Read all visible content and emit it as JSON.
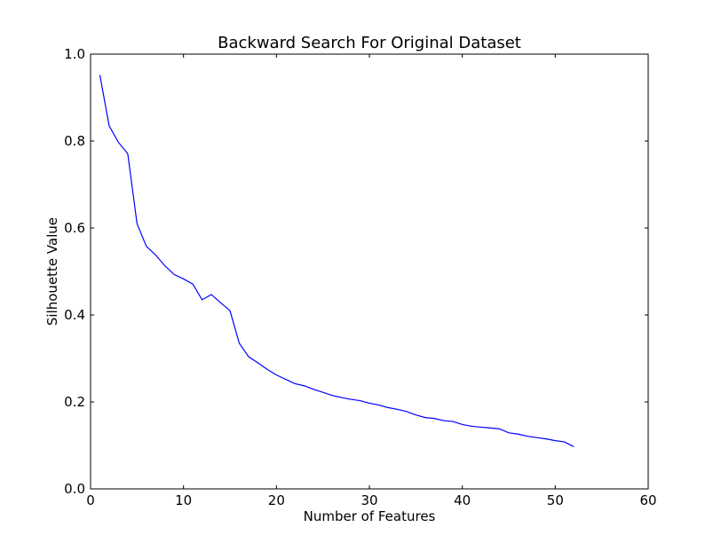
{
  "chart_data": {
    "type": "line",
    "title": "Backward Search For Original Dataset",
    "xlabel": "Number of Features",
    "ylabel": "Silhouette Value",
    "xlim": [
      0,
      60
    ],
    "ylim": [
      0.0,
      1.0
    ],
    "xticks": [
      0,
      10,
      20,
      30,
      40,
      50,
      60
    ],
    "xtick_labels": [
      "0",
      "10",
      "20",
      "30",
      "40",
      "50",
      "60"
    ],
    "yticks": [
      0.0,
      0.2,
      0.4,
      0.6,
      0.8,
      1.0
    ],
    "ytick_labels": [
      "0.0",
      "0.2",
      "0.4",
      "0.6",
      "0.8",
      "1.0"
    ],
    "grid": false,
    "legend": false,
    "series": [
      {
        "color": "#0000ff",
        "x": [
          1,
          2,
          3,
          4,
          5,
          6,
          7,
          8,
          9,
          10,
          11,
          12,
          13,
          14,
          15,
          16,
          17,
          18,
          19,
          20,
          21,
          22,
          23,
          24,
          25,
          26,
          27,
          28,
          29,
          30,
          31,
          32,
          33,
          34,
          35,
          36,
          37,
          38,
          39,
          40,
          41,
          42,
          43,
          44,
          45,
          46,
          47,
          48,
          49,
          50,
          51,
          52
        ],
        "y": [
          0.952,
          0.835,
          0.797,
          0.771,
          0.61,
          0.558,
          0.538,
          0.513,
          0.493,
          0.483,
          0.471,
          0.435,
          0.447,
          0.428,
          0.41,
          0.335,
          0.304,
          0.29,
          0.275,
          0.262,
          0.252,
          0.242,
          0.237,
          0.229,
          0.222,
          0.215,
          0.21,
          0.206,
          0.203,
          0.197,
          0.193,
          0.187,
          0.183,
          0.178,
          0.17,
          0.164,
          0.162,
          0.157,
          0.155,
          0.148,
          0.144,
          0.142,
          0.14,
          0.138,
          0.129,
          0.126,
          0.121,
          0.118,
          0.115,
          0.111,
          0.108,
          0.097
        ]
      }
    ]
  }
}
